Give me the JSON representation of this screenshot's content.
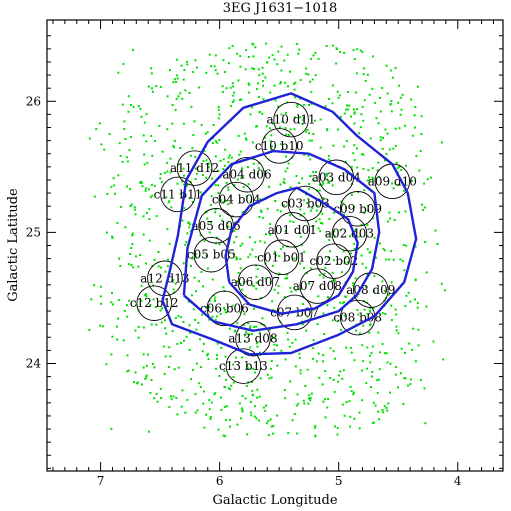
{
  "chart_data": {
    "type": "scatter",
    "title": "3EG J1631−1018",
    "xlabel": "Galactic Longitude",
    "ylabel": "Galactic Latitude",
    "xlim": [
      7.45,
      3.62
    ],
    "ylim": [
      23.18,
      26.62
    ],
    "xticks": [
      7,
      6,
      5,
      4
    ],
    "yticks": [
      24,
      25,
      26
    ],
    "grid": false,
    "legend": "none",
    "colors": {
      "points": "#00e000",
      "contours": "#1f22d6",
      "circles": "#000000"
    },
    "fields": [
      {
        "label": "a10 d11",
        "l": 5.4,
        "b": 25.86
      },
      {
        "label": "c10 b10",
        "l": 5.5,
        "b": 25.66
      },
      {
        "label": "a11 d12",
        "l": 6.21,
        "b": 25.49
      },
      {
        "label": "a04 d06",
        "l": 5.77,
        "b": 25.44
      },
      {
        "label": "a03 d04",
        "l": 5.02,
        "b": 25.42
      },
      {
        "label": "a09 d10",
        "l": 4.55,
        "b": 25.39
      },
      {
        "label": "c11 b11",
        "l": 6.35,
        "b": 25.29
      },
      {
        "label": "c04 b04",
        "l": 5.86,
        "b": 25.25
      },
      {
        "label": "c03 b03",
        "l": 5.28,
        "b": 25.22
      },
      {
        "label": "c09 b09",
        "l": 4.84,
        "b": 25.18
      },
      {
        "label": "a05 d06",
        "l": 6.03,
        "b": 25.05
      },
      {
        "label": "a01 d01",
        "l": 5.39,
        "b": 25.02
      },
      {
        "label": "a02 d03",
        "l": 4.91,
        "b": 24.99
      },
      {
        "label": "c05 b05",
        "l": 6.07,
        "b": 24.83
      },
      {
        "label": "c01 b01",
        "l": 5.48,
        "b": 24.81
      },
      {
        "label": "c02 b02",
        "l": 5.04,
        "b": 24.78
      },
      {
        "label": "a12 d13",
        "l": 6.46,
        "b": 24.65
      },
      {
        "label": "a06 d07",
        "l": 5.7,
        "b": 24.62
      },
      {
        "label": "a07 d08",
        "l": 5.18,
        "b": 24.59
      },
      {
        "label": "a08 d09",
        "l": 4.73,
        "b": 24.56
      },
      {
        "label": "c12 b12",
        "l": 6.55,
        "b": 24.46
      },
      {
        "label": "c06 b06",
        "l": 5.96,
        "b": 24.42
      },
      {
        "label": "c07 b07",
        "l": 5.37,
        "b": 24.39
      },
      {
        "label": "c08 b08",
        "l": 4.84,
        "b": 24.35
      },
      {
        "label": "a13 d08",
        "l": 5.72,
        "b": 24.19
      },
      {
        "label": "c13 b13",
        "l": 5.8,
        "b": 23.98
      }
    ],
    "field_radius_deg": 0.145,
    "contours": [
      {
        "name": "",
        "points": [
          [
            6.48,
            24.48
          ],
          [
            6.4,
            24.3
          ],
          [
            6.05,
            24.18
          ],
          [
            5.75,
            24.07
          ],
          [
            5.4,
            24.08
          ],
          [
            5.0,
            24.22
          ],
          [
            4.7,
            24.36
          ],
          [
            4.45,
            24.62
          ],
          [
            4.35,
            24.95
          ],
          [
            4.42,
            25.3
          ],
          [
            4.55,
            25.52
          ],
          [
            4.85,
            25.74
          ],
          [
            5.05,
            25.92
          ],
          [
            5.4,
            26.06
          ],
          [
            5.8,
            25.95
          ],
          [
            6.1,
            25.69
          ],
          [
            6.28,
            25.4
          ],
          [
            6.35,
            24.98
          ],
          [
            6.42,
            24.7
          ],
          [
            6.48,
            24.48
          ]
        ]
      },
      {
        "name": "",
        "points": [
          [
            6.3,
            24.52
          ],
          [
            6.05,
            24.32
          ],
          [
            5.72,
            24.25
          ],
          [
            5.35,
            24.3
          ],
          [
            5.0,
            24.4
          ],
          [
            4.85,
            24.52
          ],
          [
            4.72,
            24.72
          ],
          [
            4.66,
            25.0
          ],
          [
            4.7,
            25.3
          ],
          [
            4.95,
            25.48
          ],
          [
            5.25,
            25.6
          ],
          [
            5.55,
            25.62
          ],
          [
            5.9,
            25.52
          ],
          [
            6.15,
            25.28
          ],
          [
            6.27,
            24.88
          ],
          [
            6.3,
            24.52
          ]
        ]
      },
      {
        "name": "",
        "points": [
          [
            5.92,
            24.62
          ],
          [
            5.75,
            24.45
          ],
          [
            5.48,
            24.38
          ],
          [
            5.2,
            24.42
          ],
          [
            5.0,
            24.52
          ],
          [
            4.88,
            24.7
          ],
          [
            4.84,
            24.92
          ],
          [
            4.92,
            25.1
          ],
          [
            5.12,
            25.22
          ],
          [
            5.35,
            25.34
          ],
          [
            5.52,
            25.3
          ],
          [
            5.75,
            25.2
          ],
          [
            5.9,
            25.02
          ],
          [
            5.95,
            24.82
          ],
          [
            5.92,
            24.62
          ]
        ]
      }
    ],
    "scatter_density": "green photon event points scattered over the field"
  }
}
